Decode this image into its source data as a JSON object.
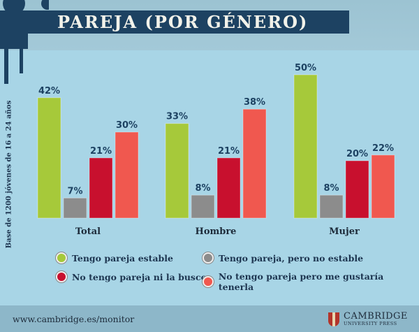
{
  "chart_data": {
    "type": "bar",
    "title": "PAREJA (POR GÉNERO)",
    "ylabel": "Base de 1200 jóvenes de 16 a 24 años",
    "categories": [
      "Total",
      "Hombre",
      "Mujer"
    ],
    "series": [
      {
        "name": "Tengo pareja estable",
        "color": "#a6c93a",
        "values": [
          42,
          33,
          50
        ],
        "labels": [
          "42%",
          "33%",
          "50%"
        ]
      },
      {
        "name": "Tengo pareja, pero no estable",
        "color": "#8c8c8c",
        "values": [
          7,
          8,
          8
        ],
        "labels": [
          "7%",
          "8%",
          "8%"
        ]
      },
      {
        "name": "No tengo pareja ni la busco",
        "color": "#c8102e",
        "values": [
          21,
          21,
          20
        ],
        "labels": [
          "21%",
          "21%",
          "20%"
        ]
      },
      {
        "name": "No tengo pareja pero me gustaría tenerla",
        "color": "#f0584f",
        "values": [
          30,
          38,
          22
        ],
        "labels": [
          "30%",
          "38%",
          "22%"
        ]
      }
    ],
    "ylim": [
      0,
      50
    ],
    "grid": false,
    "legend": "bottom"
  },
  "footer": {
    "url": "www.cambridge.es/monitor",
    "logo_line1": "CAMBRIDGE",
    "logo_line2": "UNIVERSITY PRESS"
  }
}
